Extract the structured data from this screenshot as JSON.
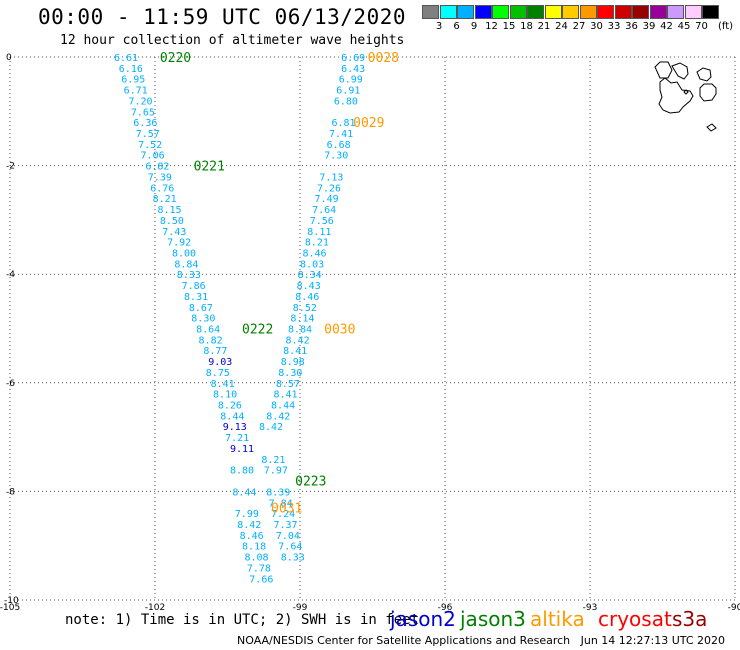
{
  "header": {
    "title": "00:00 - 11:59 UTC 06/13/2020",
    "subtitle": "12 hour collection of altimeter wave heights"
  },
  "legend": {
    "unit": "(ft)",
    "bins": [
      {
        "label": "3",
        "color": "#808080"
      },
      {
        "label": "6",
        "color": "#00ffff"
      },
      {
        "label": "9",
        "color": "#00b0ff"
      },
      {
        "label": "12",
        "color": "#0000ff"
      },
      {
        "label": "15",
        "color": "#00ff00"
      },
      {
        "label": "18",
        "color": "#00c000"
      },
      {
        "label": "21",
        "color": "#008000"
      },
      {
        "label": "24",
        "color": "#ffff00"
      },
      {
        "label": "27",
        "color": "#ffcc00"
      },
      {
        "label": "30",
        "color": "#ff9900"
      },
      {
        "label": "33",
        "color": "#ff0000"
      },
      {
        "label": "36",
        "color": "#cc0000"
      },
      {
        "label": "39",
        "color": "#990000"
      },
      {
        "label": "42",
        "color": "#990099"
      },
      {
        "label": "45",
        "color": "#cc99ff"
      },
      {
        "label": "70",
        "color": "#ffccff"
      },
      {
        "label": "",
        "color": "#000000"
      }
    ]
  },
  "chart_data": {
    "type": "scatter",
    "xlim": [
      -105,
      -90
    ],
    "ylim": [
      -10,
      0
    ],
    "x_ticks": [
      "-105",
      "-102",
      "-99",
      "-96",
      "-93",
      "-90"
    ],
    "y_ticks": [
      "0",
      "-2",
      "-4",
      "-6",
      "-8",
      "-10"
    ],
    "grid": true,
    "tracks": [
      {
        "series": "jason3",
        "time_labels": [
          {
            "text": "0220",
            "lon": -101.9,
            "lat": 0
          },
          {
            "text": "0221",
            "lon": -101.2,
            "lat": -2
          },
          {
            "text": "0222",
            "lon": -100.2,
            "lat": -5
          },
          {
            "text": "0223",
            "lon": -99.1,
            "lat": -7.8
          }
        ],
        "points": [
          [
            -102.6,
            0,
            "6.61"
          ],
          [
            -102.5,
            -0.2,
            "6.16"
          ],
          [
            -102.45,
            -0.4,
            "6.95"
          ],
          [
            -102.4,
            -0.6,
            "6.71"
          ],
          [
            -102.3,
            -0.8,
            "7.20"
          ],
          [
            -102.25,
            -1.0,
            "7.65"
          ],
          [
            -102.2,
            -1.2,
            "6.36"
          ],
          [
            -102.15,
            -1.4,
            "7.57"
          ],
          [
            -102.1,
            -1.6,
            "7.52"
          ],
          [
            -102.05,
            -1.8,
            "7.06"
          ],
          [
            -101.95,
            -2.0,
            "6.82"
          ],
          [
            -101.9,
            -2.2,
            "7.39"
          ],
          [
            -101.85,
            -2.4,
            "6.76"
          ],
          [
            -101.8,
            -2.6,
            "8.21"
          ],
          [
            -101.7,
            -2.8,
            "8.15"
          ],
          [
            -101.65,
            -3.0,
            "8.50"
          ],
          [
            -101.6,
            -3.2,
            "7.43"
          ],
          [
            -101.5,
            -3.4,
            "7.92"
          ],
          [
            -101.4,
            -3.6,
            "8.00"
          ],
          [
            -101.35,
            -3.8,
            "8.84"
          ],
          [
            -101.3,
            -4.0,
            "8.33"
          ],
          [
            -101.2,
            -4.2,
            "7.86"
          ],
          [
            -101.15,
            -4.4,
            "8.31"
          ],
          [
            -101.05,
            -4.6,
            "8.67"
          ],
          [
            -101.0,
            -4.8,
            "8.30"
          ],
          [
            -100.9,
            -5.0,
            "8.64"
          ],
          [
            -100.85,
            -5.2,
            "8.82"
          ],
          [
            -100.75,
            -5.4,
            "8.77"
          ],
          [
            -100.7,
            -5.8,
            "8.75"
          ],
          [
            -100.6,
            -6.0,
            "8.41"
          ],
          [
            -100.55,
            -6.2,
            "8.10"
          ],
          [
            -100.45,
            -6.4,
            "8.26"
          ],
          [
            -100.4,
            -6.6,
            "8.44"
          ],
          [
            -100.3,
            -7.0,
            "7.21"
          ],
          [
            -100.2,
            -7.6,
            "8.80"
          ],
          [
            -100.15,
            -8.0,
            "8.44"
          ],
          [
            -100.1,
            -8.4,
            "7.99"
          ],
          [
            -100.05,
            -8.6,
            "8.42"
          ],
          [
            -100.0,
            -8.8,
            "8.46"
          ],
          [
            -99.95,
            -9.0,
            "8.18"
          ],
          [
            -99.9,
            -9.2,
            "8.08"
          ],
          [
            -99.85,
            -9.4,
            "7.78"
          ],
          [
            -99.8,
            -9.6,
            "7.66"
          ]
        ]
      },
      {
        "series": "jason2",
        "time_labels": [],
        "points": [
          [
            -100.65,
            -5.6,
            "9.03"
          ],
          [
            -100.35,
            -6.8,
            "9.13"
          ],
          [
            -100.2,
            -7.2,
            "9.11"
          ]
        ]
      },
      {
        "series": "altika",
        "time_labels": [
          {
            "text": "0028",
            "lon": -97.6,
            "lat": 0
          },
          {
            "text": "0029",
            "lon": -97.9,
            "lat": -1.2
          },
          {
            "text": "0030",
            "lon": -98.5,
            "lat": -5
          },
          {
            "text": "0031",
            "lon": -99.6,
            "lat": -8.3
          }
        ],
        "points": [
          [
            -97.9,
            0,
            "6.69"
          ],
          [
            -97.9,
            -0.2,
            "6.43"
          ],
          [
            -97.95,
            -0.4,
            "6.99"
          ],
          [
            -98.0,
            -0.6,
            "6.91"
          ],
          [
            -98.05,
            -0.8,
            "6.80"
          ],
          [
            -98.1,
            -1.2,
            "6.81"
          ],
          [
            -98.15,
            -1.4,
            "7.41"
          ],
          [
            -98.2,
            -1.6,
            "6.68"
          ],
          [
            -98.25,
            -1.8,
            "7.30"
          ],
          [
            -98.35,
            -2.2,
            "7.13"
          ],
          [
            -98.4,
            -2.4,
            "7.26"
          ],
          [
            -98.45,
            -2.6,
            "7.49"
          ],
          [
            -98.5,
            -2.8,
            "7.64"
          ],
          [
            -98.55,
            -3.0,
            "7.56"
          ],
          [
            -98.6,
            -3.2,
            "8.11"
          ],
          [
            -98.65,
            -3.4,
            "8.21"
          ],
          [
            -98.7,
            -3.6,
            "8.46"
          ],
          [
            -98.75,
            -3.8,
            "8.03"
          ],
          [
            -98.8,
            -4.0,
            "8.34"
          ],
          [
            -98.82,
            -4.2,
            "8.43"
          ],
          [
            -98.85,
            -4.4,
            "8.46"
          ],
          [
            -98.9,
            -4.6,
            "8.52"
          ],
          [
            -98.95,
            -4.8,
            "8.14"
          ],
          [
            -99.0,
            -5.0,
            "8.84"
          ],
          [
            -99.05,
            -5.2,
            "8.42"
          ],
          [
            -99.1,
            -5.4,
            "8.41"
          ],
          [
            -99.15,
            -5.6,
            "8.98"
          ],
          [
            -99.2,
            -5.8,
            "8.30"
          ],
          [
            -99.25,
            -6.0,
            "8.57"
          ],
          [
            -99.3,
            -6.2,
            "8.41"
          ],
          [
            -99.35,
            -6.4,
            "8.44"
          ],
          [
            -99.45,
            -6.6,
            "8.42"
          ],
          [
            -99.6,
            -6.8,
            "8.42"
          ],
          [
            -99.55,
            -7.4,
            "8.21"
          ],
          [
            -99.5,
            -7.6,
            "7.97"
          ],
          [
            -99.45,
            -8.0,
            "8.39"
          ],
          [
            -99.4,
            -8.2,
            "7.84"
          ],
          [
            -99.35,
            -8.4,
            "7.24"
          ],
          [
            -99.3,
            -8.6,
            "7.37"
          ],
          [
            -99.25,
            -8.8,
            "7.04"
          ],
          [
            -99.2,
            -9.0,
            "7.64"
          ],
          [
            -99.15,
            -9.2,
            "8.33"
          ]
        ]
      }
    ]
  },
  "footer": {
    "note": "note: 1) Time is in UTC; 2) SWH is in feet",
    "satellites": [
      {
        "name": "jason2",
        "color": "#0000cc"
      },
      {
        "name": "jason3",
        "color": "#008000"
      },
      {
        "name": "altika",
        "color": "#ff9900"
      },
      {
        "name": "cryosat",
        "color": "#ff0000"
      },
      {
        "name": "s3a",
        "color": "#990000"
      }
    ],
    "credit": "NOAA/NESDIS Center for Satellite Applications and Research   Jun 14 12:27:13 UTC 2020"
  },
  "colors": {
    "swh_default": "#00b0ff",
    "swh_high": "#0000cc",
    "jason3": "#008000",
    "altika": "#ff9900"
  }
}
